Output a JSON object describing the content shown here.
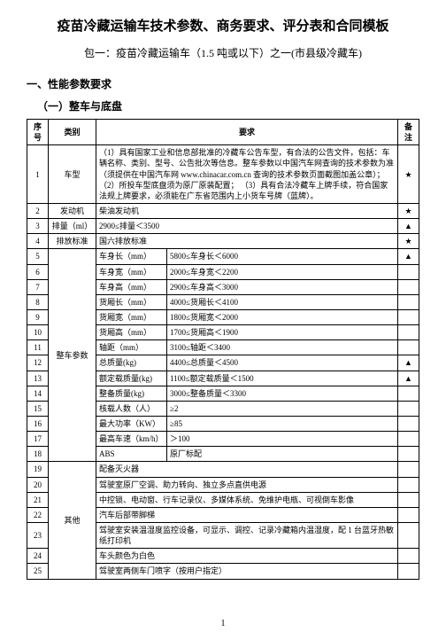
{
  "title": "疫苗冷藏运输车技术参数、商务要求、评分表和合同模板",
  "subtitle": "包一：疫苗冷藏运输车（1.5 吨或以下）之一(市县级冷藏车)",
  "section1": "一、性能参数要求",
  "section1_1": "（一）整车与底盘",
  "headers": {
    "num": "序号",
    "cat": "类别",
    "req": "要求",
    "note": "备注"
  },
  "rows": [
    {
      "n": "1",
      "cat": "车型",
      "sub": "",
      "req": "（1）具有国家工业和信息部批准的冷藏车公告车型，有合法的公告文件，包括：车辆名称、类别、型号、公告批次等信息。整车参数以中国汽车网查询的技术参数为准（须提供在中国汽车网 www.chinacar.com.cn 查询的技术参数页面截图加盖公章）；\n（2）所投车型底盘须为原厂原装配置；\n（3）具有合法冷藏车上牌手续，符合国家法规上牌要求，必须能在广东省范围内上小货车号牌（蓝牌）。",
      "note": "★",
      "catrowspan": 1,
      "colspan": 2
    },
    {
      "n": "2",
      "cat": "发动机",
      "sub": "",
      "req": "柴油发动机",
      "note": "★",
      "colspan": 2
    },
    {
      "n": "3",
      "cat": "排量（ml）",
      "sub": "",
      "req": "2900≤排量＜3500",
      "note": "▲",
      "colspan": 2
    },
    {
      "n": "4",
      "cat": "排放标准",
      "sub": "",
      "req": "国六排放标准",
      "note": "★",
      "colspan": 2
    },
    {
      "n": "5",
      "cat": "整车参数",
      "sub": "车身长（mm）",
      "req": "5800≤车身长＜6000",
      "note": "▲",
      "catrowspan": 14
    },
    {
      "n": "6",
      "cat": "",
      "sub": "车身宽（mm）",
      "req": "2000≤车身宽＜2200",
      "note": ""
    },
    {
      "n": "7",
      "cat": "",
      "sub": "车身高（mm）",
      "req": "2900≤车身高＜3000",
      "note": ""
    },
    {
      "n": "8",
      "cat": "",
      "sub": "货厢长（mm）",
      "req": "4000≤货厢长＜4100",
      "note": ""
    },
    {
      "n": "9",
      "cat": "",
      "sub": "货厢宽（mm）",
      "req": "1800≤货厢宽＜2000",
      "note": ""
    },
    {
      "n": "10",
      "cat": "",
      "sub": "货厢高（mm）",
      "req": "1700≤货厢高＜1900",
      "note": ""
    },
    {
      "n": "11",
      "cat": "",
      "sub": "轴距（mm）",
      "req": "3100≤轴距＜3400",
      "note": ""
    },
    {
      "n": "12",
      "cat": "",
      "sub": "总质量(kg)",
      "req": "4400≤总质量＜4500",
      "note": "▲"
    },
    {
      "n": "13",
      "cat": "",
      "sub": "额定载质量(kg)",
      "req": "1100≤额定载质量＜1500",
      "note": "▲"
    },
    {
      "n": "14",
      "cat": "",
      "sub": "整备质量(kg)",
      "req": "3000≤整备质量＜3300",
      "note": ""
    },
    {
      "n": "15",
      "cat": "",
      "sub": "核载人数（人）",
      "req": "≥2",
      "note": ""
    },
    {
      "n": "16",
      "cat": "",
      "sub": "最大功率（KW）",
      "req": "≥85",
      "note": ""
    },
    {
      "n": "17",
      "cat": "",
      "sub": "最高车速（km/h）",
      "req": "＞100",
      "note": ""
    },
    {
      "n": "18",
      "cat": "",
      "sub": "ABS",
      "req": "原厂标配",
      "note": ""
    },
    {
      "n": "19",
      "cat": "其他",
      "sub": "",
      "req": "配备灭火器",
      "note": "",
      "catrowspan": 7,
      "colspan": 2,
      "catmid": true
    },
    {
      "n": "20",
      "cat": "",
      "sub": "",
      "req": "驾驶室原厂空调、助力转向、独立多点直供电源",
      "note": "",
      "colspan": 2
    },
    {
      "n": "21",
      "cat": "",
      "sub": "",
      "req": "中控锁、电动窗、行车记录仪、多媒体系统、免维护电瓶、可视倒车影像",
      "note": "",
      "colspan": 2
    },
    {
      "n": "22",
      "cat": "",
      "sub": "",
      "req": "汽车后部带脚梯",
      "note": "",
      "colspan": 2
    },
    {
      "n": "23",
      "cat": "",
      "sub": "",
      "req": "驾驶室安装温湿度监控设备，可显示、调控、记录冷藏箱内温湿度，配 1 台蓝牙热敏纸打印机",
      "note": "",
      "colspan": 2
    },
    {
      "n": "24",
      "cat": "",
      "sub": "",
      "req": "车头颜色为白色",
      "note": "",
      "colspan": 2
    },
    {
      "n": "25",
      "cat": "",
      "sub": "",
      "req": "驾驶室两侧车门喷字（按用户指定）",
      "note": "",
      "colspan": 2
    }
  ],
  "page_number": "1"
}
